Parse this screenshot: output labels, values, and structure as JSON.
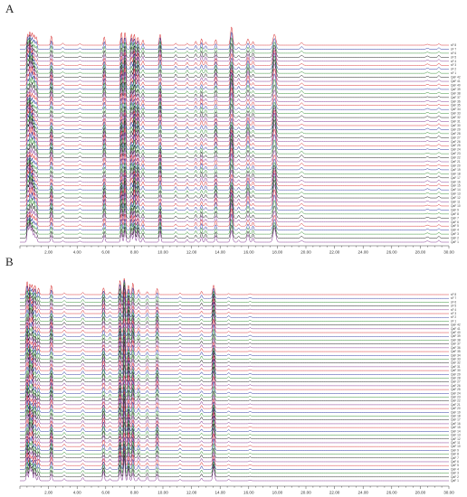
{
  "chart_data": [
    {
      "type": "line",
      "panel_label": "A",
      "xlabel": "",
      "ylabel": "",
      "xlim": [
        0,
        30
      ],
      "x_ticks": [
        2,
        4,
        6,
        8,
        10,
        12,
        14,
        16,
        18,
        20,
        22,
        24,
        26,
        28,
        30
      ],
      "x_tick_labels": [
        "2.00",
        "4.00",
        "6.00",
        "8.00",
        "10.00",
        "12.00",
        "14.00",
        "16.00",
        "18.00",
        "20.00",
        "22.00",
        "24.00",
        "26.00",
        "28.00",
        "30.00"
      ],
      "trace_labels": [
        "sF 8",
        "sF 7",
        "sF 6",
        "sF 5",
        "sF 4",
        "sF 3",
        "sF 2",
        "sF 1",
        "QaF 42",
        "QaF 41",
        "QaF 40",
        "QaF 39",
        "QaF 38",
        "QaF 37",
        "QaF 36",
        "QaF 35",
        "QaF 34",
        "QaF 33",
        "QaF 32",
        "QaF 31",
        "QaF 30",
        "QaF 29",
        "QaF 28",
        "QaF 27",
        "QaF 26",
        "QaF 25",
        "QaF 24",
        "QaF 23",
        "QaF 22",
        "QaF 21",
        "QaF 20",
        "QaF 19",
        "QaF 18",
        "QaF 17",
        "QaF 16",
        "QaF 15",
        "QaF 14",
        "QaF 13",
        "QaF 12",
        "QaF 11",
        "QaF 10",
        "QaF 9",
        "QaF 8",
        "QaF 7",
        "QaF 6",
        "QaF 5",
        "QaF 4",
        "QaF 3",
        "QaF 2",
        "QaF 1"
      ],
      "series_colors": [
        "#d62728",
        "#1f2a9a",
        "#2a8a2a",
        "#111111",
        "#7b2a8a"
      ],
      "peaks": [
        {
          "t": 0.55,
          "h": 14,
          "w": 0.05
        },
        {
          "t": 0.7,
          "h": 20,
          "w": 0.05
        },
        {
          "t": 0.85,
          "h": 17,
          "w": 0.05
        },
        {
          "t": 1.0,
          "h": 12,
          "w": 0.05
        },
        {
          "t": 1.15,
          "h": 8,
          "w": 0.05
        },
        {
          "t": 2.2,
          "h": 10,
          "w": 0.05
        },
        {
          "t": 3.0,
          "h": 2,
          "w": 0.06
        },
        {
          "t": 4.2,
          "h": 1.5,
          "w": 0.06
        },
        {
          "t": 5.9,
          "h": 10,
          "w": 0.05
        },
        {
          "t": 7.1,
          "h": 14,
          "w": 0.05
        },
        {
          "t": 7.35,
          "h": 17,
          "w": 0.05
        },
        {
          "t": 7.8,
          "h": 10,
          "w": 0.05
        },
        {
          "t": 8.0,
          "h": 16,
          "w": 0.05
        },
        {
          "t": 8.25,
          "h": 12,
          "w": 0.05
        },
        {
          "t": 8.6,
          "h": 5,
          "w": 0.05
        },
        {
          "t": 9.8,
          "h": 11,
          "w": 0.05
        },
        {
          "t": 10.9,
          "h": 3,
          "w": 0.05
        },
        {
          "t": 11.7,
          "h": 3,
          "w": 0.05
        },
        {
          "t": 12.3,
          "h": 3.5,
          "w": 0.05
        },
        {
          "t": 12.7,
          "h": 6,
          "w": 0.05
        },
        {
          "t": 13.0,
          "h": 4,
          "w": 0.05
        },
        {
          "t": 13.7,
          "h": 8,
          "w": 0.05
        },
        {
          "t": 14.8,
          "h": 17,
          "w": 0.07
        },
        {
          "t": 15.3,
          "h": 3,
          "w": 0.05
        },
        {
          "t": 15.95,
          "h": 9,
          "w": 0.07
        },
        {
          "t": 16.3,
          "h": 4,
          "w": 0.05
        },
        {
          "t": 17.8,
          "h": 16,
          "w": 0.09
        },
        {
          "t": 19.7,
          "h": 2.5,
          "w": 0.08
        },
        {
          "t": 28.5,
          "h": 1.2,
          "w": 0.08
        },
        {
          "t": 29.3,
          "h": 1.8,
          "w": 0.06
        }
      ]
    },
    {
      "type": "line",
      "panel_label": "B",
      "xlabel": "",
      "ylabel": "",
      "xlim": [
        0,
        30
      ],
      "x_ticks": [
        2,
        4,
        6,
        8,
        10,
        12,
        14,
        16,
        18,
        20,
        22,
        24,
        26,
        28,
        30
      ],
      "x_tick_labels": [
        "2.00",
        "4.00",
        "6.00",
        "8.00",
        "10.00",
        "12.00",
        "14.00",
        "16.00",
        "18.00",
        "20.00",
        "22.00",
        "24.00",
        "26.00",
        "28.00",
        "30.00"
      ],
      "trace_labels": [
        "sF 8",
        "sF 7",
        "sF 6",
        "sF 5",
        "sF 4",
        "sF 3",
        "sF 2",
        "sF 1",
        "QaF 42",
        "QaF 41",
        "QaF 40",
        "QaF 39",
        "QaF 38",
        "QaF 37",
        "QaF 36",
        "QaF 35",
        "QaF 34",
        "QaF 33",
        "QaF 32",
        "QaF 31",
        "QaF 30",
        "QaF 29",
        "QaF 28",
        "QaF 27",
        "QaF 26",
        "QaF 25",
        "QaF 24",
        "QaF 23",
        "QaF 22",
        "QaF 21",
        "QaF 20",
        "QaF 19",
        "QaF 18",
        "QaF 17",
        "QaF 16",
        "QaF 15",
        "QaF 14",
        "QaF 13",
        "QaF 12",
        "QaF 11",
        "QaF 10",
        "QaF 9",
        "QaF 8",
        "QaF 7",
        "QaF 6",
        "QaF 5",
        "QaF 4",
        "QaF 3",
        "QaF 2",
        "QaF 1"
      ],
      "series_colors": [
        "#d62728",
        "#1f2a9a",
        "#2a8a2a",
        "#111111",
        "#7b2a8a"
      ],
      "peaks": [
        {
          "t": 0.5,
          "h": 12,
          "w": 0.05
        },
        {
          "t": 0.7,
          "h": 16,
          "w": 0.05
        },
        {
          "t": 0.85,
          "h": 14,
          "w": 0.05
        },
        {
          "t": 1.05,
          "h": 9,
          "w": 0.05
        },
        {
          "t": 1.3,
          "h": 6,
          "w": 0.05
        },
        {
          "t": 2.2,
          "h": 10,
          "w": 0.05
        },
        {
          "t": 3.1,
          "h": 2.5,
          "w": 0.06
        },
        {
          "t": 4.4,
          "h": 3,
          "w": 0.06
        },
        {
          "t": 5.85,
          "h": 9,
          "w": 0.05
        },
        {
          "t": 6.3,
          "h": 3,
          "w": 0.05
        },
        {
          "t": 7.0,
          "h": 13,
          "w": 0.05
        },
        {
          "t": 7.3,
          "h": 20,
          "w": 0.05
        },
        {
          "t": 7.6,
          "h": 14,
          "w": 0.05
        },
        {
          "t": 7.9,
          "h": 12,
          "w": 0.05
        },
        {
          "t": 8.3,
          "h": 5,
          "w": 0.05
        },
        {
          "t": 8.9,
          "h": 4,
          "w": 0.05
        },
        {
          "t": 9.6,
          "h": 8,
          "w": 0.05
        },
        {
          "t": 11.2,
          "h": 2,
          "w": 0.05
        },
        {
          "t": 12.7,
          "h": 3,
          "w": 0.05
        },
        {
          "t": 13.55,
          "h": 14,
          "w": 0.06
        },
        {
          "t": 14.6,
          "h": 1.5,
          "w": 0.05
        },
        {
          "t": 16.1,
          "h": 1,
          "w": 0.06
        }
      ]
    }
  ],
  "theme": {
    "background": "#ffffff",
    "axis_color": "#444444",
    "text_color": "#333333"
  }
}
